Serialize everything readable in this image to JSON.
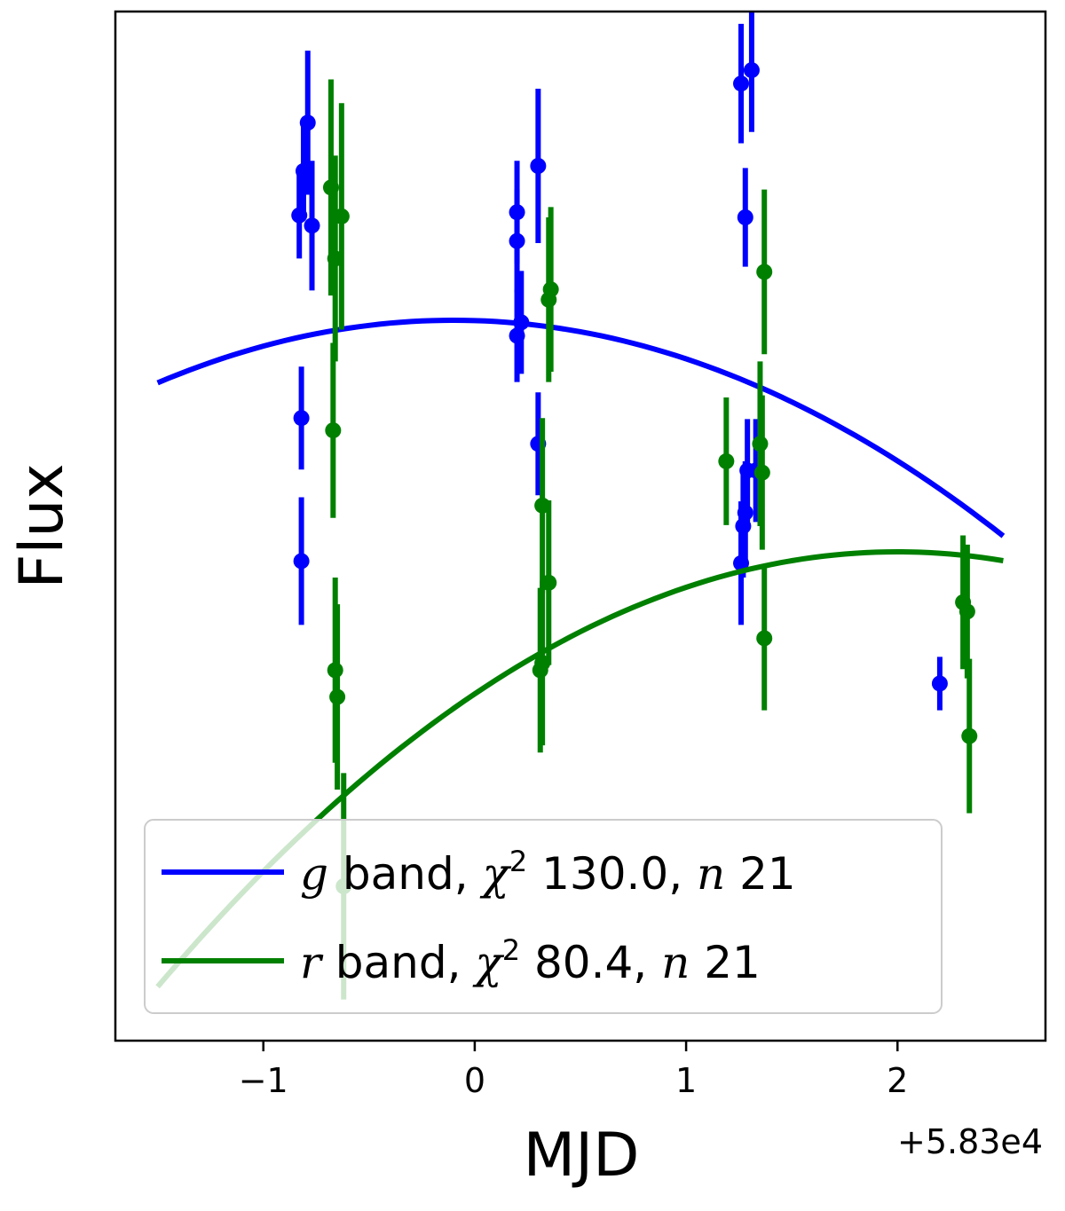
{
  "chart_data": {
    "type": "scatter",
    "xlabel": "MJD",
    "ylabel": "Flux",
    "x_offset_label": "+5.83e4",
    "xlim": [
      -1.7,
      2.7
    ],
    "ylim": [
      0,
      100
    ],
    "x_ticks": [
      {
        "value": -1,
        "label": "−1"
      },
      {
        "value": 0,
        "label": "0"
      },
      {
        "value": 1,
        "label": "1"
      },
      {
        "value": 2,
        "label": "2"
      }
    ],
    "y_ticks_shown": false,
    "legend_position": "lower-left",
    "series": [
      {
        "name": "g band, χ² 130.0, n 21",
        "legend": {
          "band": "g",
          "suffix": " band, ",
          "chi": "χ",
          "sup": "2",
          "chi_value": " 130.0, ",
          "n": "n",
          "n_value": " 21"
        },
        "color": "#0000ff",
        "points": [
          {
            "x": -0.83,
            "y": 80.2,
            "err": 4.2
          },
          {
            "x": -0.81,
            "y": 84.5,
            "err": 4.5
          },
          {
            "x": -0.79,
            "y": 89.2,
            "err": 7.0
          },
          {
            "x": -0.77,
            "y": 79.2,
            "err": 6.3
          },
          {
            "x": -0.82,
            "y": 60.5,
            "err": 5.0
          },
          {
            "x": -0.82,
            "y": 46.6,
            "err": 6.2
          },
          {
            "x": 0.2,
            "y": 80.5,
            "err": 5.0
          },
          {
            "x": 0.2,
            "y": 77.7,
            "err": 5.0
          },
          {
            "x": 0.2,
            "y": 68.5,
            "err": 4.5
          },
          {
            "x": 0.22,
            "y": 69.8,
            "err": 5.0
          },
          {
            "x": 0.3,
            "y": 85.0,
            "err": 7.5
          },
          {
            "x": 0.3,
            "y": 58.0,
            "err": 5.0
          },
          {
            "x": 1.26,
            "y": 93.0,
            "err": 5.8
          },
          {
            "x": 1.31,
            "y": 94.3,
            "err": 6.0
          },
          {
            "x": 1.28,
            "y": 80.0,
            "err": 4.8
          },
          {
            "x": 1.29,
            "y": 55.4,
            "err": 5.0
          },
          {
            "x": 1.28,
            "y": 51.3,
            "err": 5.0
          },
          {
            "x": 1.27,
            "y": 50.0,
            "err": 5.0
          },
          {
            "x": 1.26,
            "y": 46.4,
            "err": 6.0
          },
          {
            "x": 1.33,
            "y": 55.4,
            "err": 5.0
          },
          {
            "x": 2.2,
            "y": 34.7,
            "err": 2.6
          }
        ],
        "fit_curve": {
          "peak_x": -0.1,
          "peak_y": 70.0,
          "curvature": 3.1
        }
      },
      {
        "name": "r band, χ² 80.4, n 21",
        "legend": {
          "band": "r",
          "suffix": " band, ",
          "chi": "χ",
          "sup": "2",
          "chi_value": " 80.4, ",
          "n": "n",
          "n_value": " 21"
        },
        "color": "#008000",
        "points": [
          {
            "x": -0.68,
            "y": 82.9,
            "err": 10.5
          },
          {
            "x": -0.63,
            "y": 80.1,
            "err": 11.0
          },
          {
            "x": -0.66,
            "y": 76.0,
            "err": 10.0
          },
          {
            "x": -0.67,
            "y": 59.3,
            "err": 8.5
          },
          {
            "x": -0.66,
            "y": 36.0,
            "err": 9.0
          },
          {
            "x": -0.65,
            "y": 33.4,
            "err": 9.0
          },
          {
            "x": -0.62,
            "y": 15.0,
            "err": 11.0
          },
          {
            "x": 0.36,
            "y": 73.0,
            "err": 8.0
          },
          {
            "x": 0.35,
            "y": 72.0,
            "err": 8.0
          },
          {
            "x": 0.32,
            "y": 52.0,
            "err": 8.5
          },
          {
            "x": 0.35,
            "y": 44.5,
            "err": 8.0
          },
          {
            "x": 0.32,
            "y": 36.7,
            "err": 8.0
          },
          {
            "x": 0.31,
            "y": 36.0,
            "err": 8.0
          },
          {
            "x": 1.19,
            "y": 56.3,
            "err": 6.2
          },
          {
            "x": 1.37,
            "y": 74.7,
            "err": 8.0
          },
          {
            "x": 1.35,
            "y": 58.0,
            "err": 8.0
          },
          {
            "x": 1.36,
            "y": 55.2,
            "err": 7.5
          },
          {
            "x": 1.37,
            "y": 39.1,
            "err": 7.0
          },
          {
            "x": 2.31,
            "y": 42.6,
            "err": 6.5
          },
          {
            "x": 2.33,
            "y": 41.7,
            "err": 6.5
          },
          {
            "x": 2.34,
            "y": 29.6,
            "err": 7.5
          }
        ],
        "fit_curve": {
          "peak_x": 2.0,
          "peak_y": 47.5,
          "curvature": 3.45
        }
      }
    ]
  }
}
